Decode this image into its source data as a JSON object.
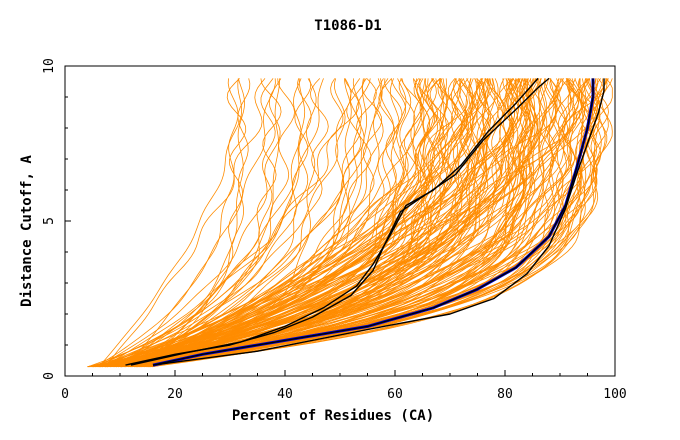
{
  "chart_data": {
    "type": "line",
    "title": "T1086-D1",
    "xlabel": "Percent of Residues (CA)",
    "ylabel": "Distance Cutoff, A",
    "xlim": [
      0,
      100
    ],
    "ylim": [
      0,
      10
    ],
    "x_ticks": [
      0,
      20,
      40,
      60,
      80,
      100
    ],
    "y_ticks": [
      0,
      5,
      10
    ],
    "grid": false,
    "legend": "none",
    "colors": {
      "background_curves": "#ff8c00",
      "highlight_blue": "#0000cc",
      "highlight_black": "#000000"
    },
    "background_curve_count": 200,
    "highlight_series": [
      {
        "color": "#0000cc",
        "points": [
          [
            16,
            0.35
          ],
          [
            25,
            0.7
          ],
          [
            40,
            1.15
          ],
          [
            55,
            1.6
          ],
          [
            67,
            2.2
          ],
          [
            75,
            2.8
          ],
          [
            82,
            3.5
          ],
          [
            88,
            4.5
          ],
          [
            91,
            5.5
          ],
          [
            93,
            6.7
          ],
          [
            95,
            8.0
          ],
          [
            96,
            9.0
          ],
          [
            96,
            9.6
          ]
        ]
      },
      {
        "color": "#000000",
        "points": [
          [
            16,
            0.35
          ],
          [
            25,
            0.7
          ],
          [
            40,
            1.15
          ],
          [
            55,
            1.6
          ],
          [
            67,
            2.2
          ],
          [
            75,
            2.8
          ],
          [
            82,
            3.5
          ],
          [
            88,
            4.5
          ],
          [
            91,
            5.5
          ],
          [
            93,
            6.7
          ],
          [
            95,
            8.0
          ],
          [
            96,
            9.0
          ],
          [
            96,
            9.6
          ]
        ]
      },
      {
        "color": "#000000",
        "points": [
          [
            11,
            0.35
          ],
          [
            20,
            0.7
          ],
          [
            30,
            1.0
          ],
          [
            38,
            1.4
          ],
          [
            45,
            1.9
          ],
          [
            52,
            2.6
          ],
          [
            56,
            3.4
          ],
          [
            58,
            4.2
          ],
          [
            61,
            5.3
          ],
          [
            66,
            5.9
          ],
          [
            71,
            6.5
          ],
          [
            76,
            7.6
          ],
          [
            82,
            8.6
          ],
          [
            86,
            9.3
          ],
          [
            88,
            9.6
          ]
        ]
      },
      {
        "color": "#000000",
        "points": [
          [
            12,
            0.35
          ],
          [
            22,
            0.75
          ],
          [
            32,
            1.1
          ],
          [
            40,
            1.6
          ],
          [
            47,
            2.2
          ],
          [
            53,
            2.9
          ],
          [
            56,
            3.6
          ],
          [
            59,
            4.5
          ],
          [
            62,
            5.5
          ],
          [
            67,
            6.0
          ],
          [
            72,
            6.8
          ],
          [
            77,
            7.9
          ],
          [
            82,
            8.8
          ],
          [
            86,
            9.6
          ]
        ]
      },
      {
        "color": "#000000",
        "points": [
          [
            16,
            0.35
          ],
          [
            35,
            0.8
          ],
          [
            55,
            1.5
          ],
          [
            70,
            2.0
          ],
          [
            78,
            2.5
          ],
          [
            84,
            3.3
          ],
          [
            88,
            4.2
          ],
          [
            91,
            5.4
          ],
          [
            93,
            6.5
          ],
          [
            95,
            7.5
          ],
          [
            97,
            8.5
          ],
          [
            98,
            9.2
          ],
          [
            98,
            9.6
          ]
        ]
      }
    ]
  }
}
